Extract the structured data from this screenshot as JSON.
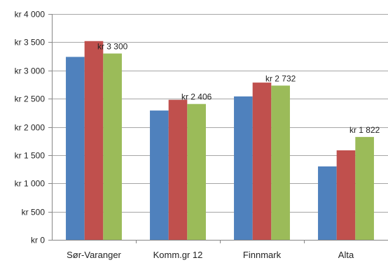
{
  "chart_data": {
    "type": "bar",
    "categories": [
      "Sør-Varanger",
      "Komm.gr 12",
      "Finnmark",
      "Alta"
    ],
    "series": [
      {
        "values": [
          3240,
          2290,
          2540,
          1300
        ],
        "color": "#4f81bd"
      },
      {
        "values": [
          3520,
          2480,
          2785,
          1585
        ],
        "color": "#c0504d"
      },
      {
        "values": [
          3300,
          2406,
          2732,
          1822
        ],
        "color": "#9bbb59"
      }
    ],
    "data_labels": [
      "kr 3 300",
      "kr 2 406",
      "kr 2 732",
      "kr 1 822"
    ],
    "data_label_series": 2,
    "ylim": [
      0,
      4000
    ],
    "yticks": [
      0,
      500,
      1000,
      1500,
      2000,
      2500,
      3000,
      3500,
      4000
    ],
    "ytick_labels": [
      "kr 0",
      "kr 500",
      "kr 1 000",
      "kr 1 500",
      "kr 2 000",
      "kr 2 500",
      "kr 3 000",
      "kr 3 500",
      "kr 4 000"
    ],
    "grid": true,
    "legend": "none",
    "title": "",
    "xlabel": "",
    "ylabel": ""
  }
}
